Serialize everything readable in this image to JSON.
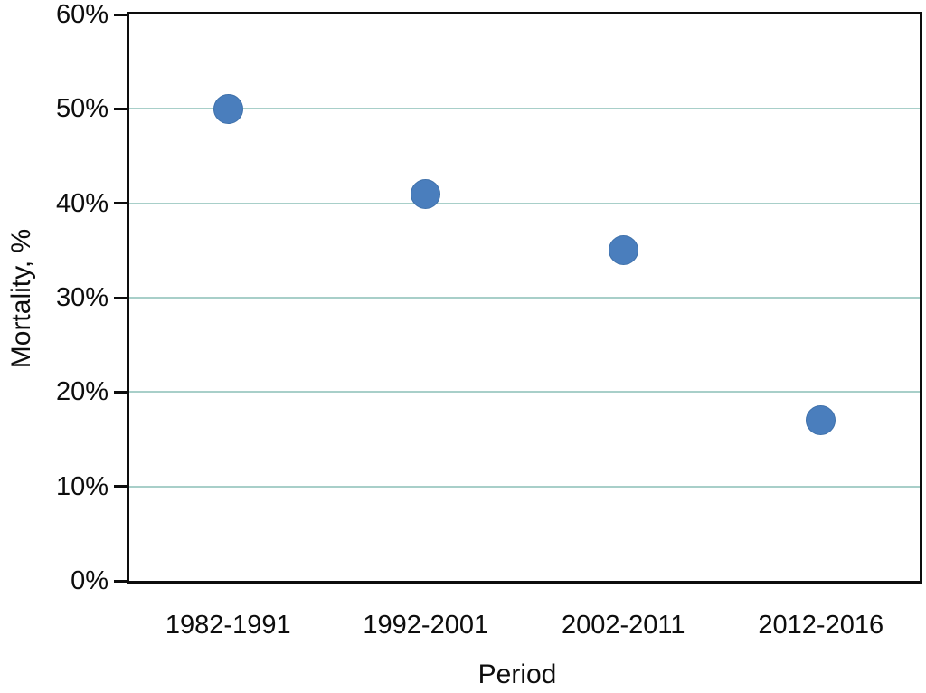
{
  "chart_data": {
    "type": "scatter",
    "title": "",
    "xlabel": "Period",
    "ylabel": "Mortality, %",
    "categories": [
      "1982-1991",
      "1992-2001",
      "2002-2011",
      "2012-2016"
    ],
    "values": [
      50,
      41,
      35,
      17
    ],
    "ylim": [
      0,
      60
    ],
    "ytick_step": 10,
    "ytick_labels": [
      "0%",
      "10%",
      "20%",
      "30%",
      "40%",
      "50%",
      "60%"
    ],
    "gridlines_at": [
      10,
      20,
      30,
      40,
      50
    ],
    "legend": "none",
    "grid": "horizontal",
    "colors": {
      "marker": "#4a7ebd",
      "marker_edge": "#3f71ab",
      "gridline": "#a8cfc9",
      "axis": "#0d0d0d",
      "background": "#ffffff"
    },
    "marker_diameter_px": 33
  }
}
